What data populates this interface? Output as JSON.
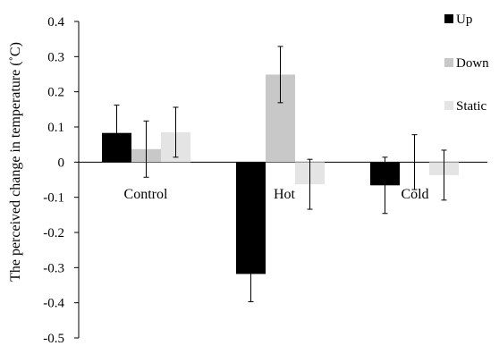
{
  "chart_data": {
    "type": "bar",
    "categories": [
      "Control",
      "Hot",
      "Cold"
    ],
    "series": [
      {
        "name": "Up",
        "color": "#000000",
        "values": [
          0.083,
          -0.318,
          -0.066
        ],
        "errors": [
          0.079,
          0.079,
          0.08
        ]
      },
      {
        "name": "Down",
        "color": "#c8c8c8",
        "values": [
          0.037,
          0.249,
          0.0
        ],
        "errors": [
          0.08,
          0.08,
          0.078
        ]
      },
      {
        "name": "Static",
        "color": "#e4e4e4",
        "values": [
          0.085,
          -0.063,
          -0.037
        ],
        "errors": [
          0.071,
          0.071,
          0.071
        ]
      }
    ],
    "ylabel": "The perceived change in temperature (˚C)",
    "xlabel": "",
    "ylim": [
      -0.5,
      0.4
    ],
    "yticks": [
      0.4,
      0.3,
      0.2,
      0.1,
      0,
      -0.1,
      -0.2,
      -0.3,
      -0.4,
      -0.5
    ],
    "ytick_labels": [
      "0.4",
      "0.3",
      "0.2",
      "0.1",
      "0",
      "-0.1",
      "-0.2",
      "-0.3",
      "-0.4",
      "-0.5"
    ],
    "grid": false,
    "legend_position": "right"
  }
}
